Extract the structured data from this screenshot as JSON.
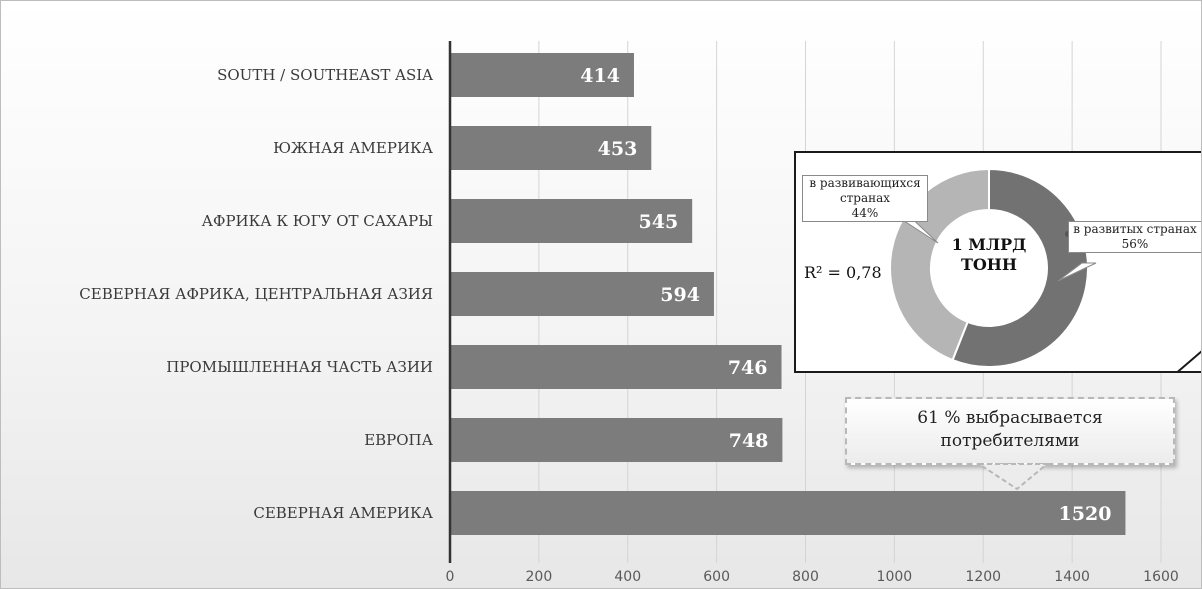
{
  "chart_data": {
    "type": "bar",
    "orientation": "horizontal",
    "categories": [
      "SOUTH / SOUTHEAST ASIA",
      "ЮЖНАЯ АМЕРИКА",
      "АФРИКА К ЮГУ ОТ САХАРЫ",
      "СЕВЕРНАЯ АФРИКА, ЦЕНТРАЛЬНАЯ АЗИЯ",
      "ПРОМЫШЛЕННАЯ ЧАСТЬ АЗИИ",
      "ЕВРОПА",
      "СЕВЕРНАЯ АМЕРИКА"
    ],
    "values": [
      414,
      453,
      545,
      594,
      746,
      748,
      1520
    ],
    "data_labels": [
      "414",
      "453",
      "545",
      "594",
      "746",
      "748",
      "1520"
    ],
    "xticks": [
      "0",
      "200",
      "400",
      "600",
      "800",
      "1000",
      "1200",
      "1400",
      "1600"
    ],
    "xlim": [
      0,
      1600
    ],
    "grid": true,
    "bar_color": "#7c7c7c"
  },
  "inset_chart": {
    "type": "pie",
    "center_label": [
      "1 МЛРД",
      "ТОНН"
    ],
    "slices": [
      {
        "label": [
          "в развитых странах",
          "56%"
        ],
        "value": 56,
        "color": "#727272"
      },
      {
        "label": [
          "в развивающихся",
          "странах",
          "44%"
        ],
        "value": 44,
        "color": "#b5b5b5"
      }
    ],
    "r_squared": "R² = 0,78"
  },
  "note": [
    "61 % выбрасывается",
    "потребителями"
  ]
}
